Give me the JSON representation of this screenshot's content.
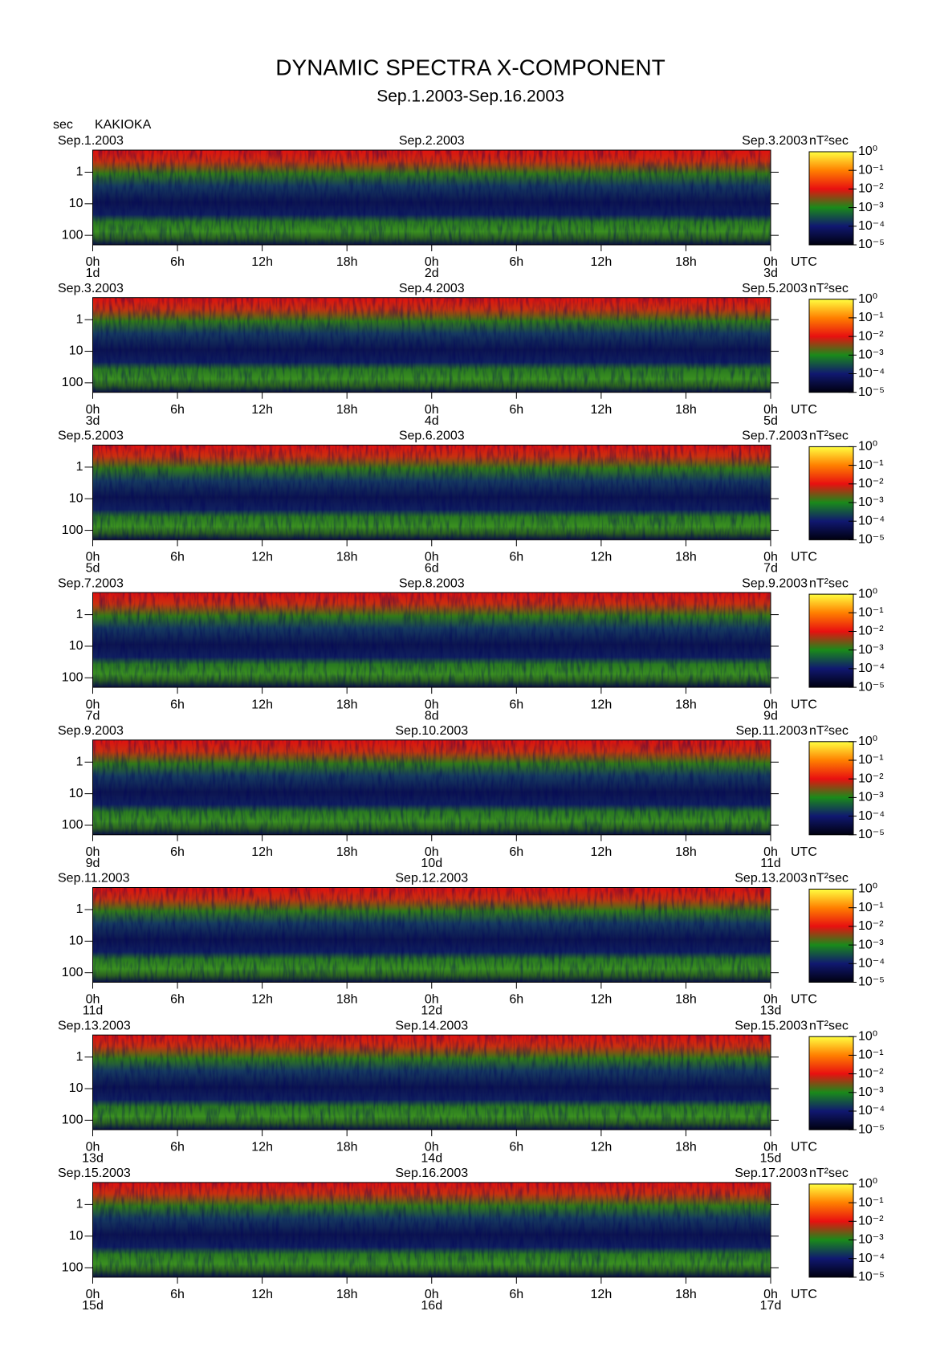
{
  "title": "DYNAMIC SPECTRA X-COMPONENT",
  "subtitle": "Sep.1.2003-Sep.16.2003",
  "y_unit": "sec",
  "station": "KAKIOKA",
  "x_unit": "UTC",
  "colorbar_unit": "nT²sec",
  "axes": {
    "xlim": [
      0,
      48
    ],
    "xticks": [
      {
        "value": 0,
        "label": "0h"
      },
      {
        "value": 6,
        "label": "6h"
      },
      {
        "value": 12,
        "label": "12h"
      },
      {
        "value": 18,
        "label": "18h"
      },
      {
        "value": 24,
        "label": "0h"
      },
      {
        "value": 30,
        "label": "6h"
      },
      {
        "value": 36,
        "label": "12h"
      },
      {
        "value": 42,
        "label": "18h"
      },
      {
        "value": 48,
        "label": "0h"
      }
    ],
    "ylim": [
      0.2,
      200
    ],
    "yscale": "log",
    "yticks": [
      1,
      10,
      100
    ],
    "clim": [
      -5,
      0
    ],
    "cticks": [
      {
        "value": 0,
        "label": "10⁰"
      },
      {
        "value": -1,
        "label": "10⁻¹"
      },
      {
        "value": -2,
        "label": "10⁻²"
      },
      {
        "value": -3,
        "label": "10⁻³"
      },
      {
        "value": -4,
        "label": "10⁻⁴"
      },
      {
        "value": -5,
        "label": "10⁻⁵"
      }
    ],
    "colormap": [
      "#000010",
      "#101870",
      "#1a8a1a",
      "#e81010",
      "#ff8000",
      "#ffff40"
    ]
  },
  "chart_data": [
    {
      "type": "heatmap",
      "date_labels": [
        "Sep.1.2003",
        "Sep.2.2003",
        "Sep.3.2003"
      ],
      "day_labels": [
        "1d",
        "2d",
        "3d"
      ]
    },
    {
      "type": "heatmap",
      "date_labels": [
        "Sep.3.2003",
        "Sep.4.2003",
        "Sep.5.2003"
      ],
      "day_labels": [
        "3d",
        "4d",
        "5d"
      ]
    },
    {
      "type": "heatmap",
      "date_labels": [
        "Sep.5.2003",
        "Sep.6.2003",
        "Sep.7.2003"
      ],
      "day_labels": [
        "5d",
        "6d",
        "7d"
      ]
    },
    {
      "type": "heatmap",
      "date_labels": [
        "Sep.7.2003",
        "Sep.8.2003",
        "Sep.9.2003"
      ],
      "day_labels": [
        "7d",
        "8d",
        "9d"
      ]
    },
    {
      "type": "heatmap",
      "date_labels": [
        "Sep.9.2003",
        "Sep.10.2003",
        "Sep.11.2003"
      ],
      "day_labels": [
        "9d",
        "10d",
        "11d"
      ]
    },
    {
      "type": "heatmap",
      "date_labels": [
        "Sep.11.2003",
        "Sep.12.2003",
        "Sep.13.2003"
      ],
      "day_labels": [
        "11d",
        "12d",
        "13d"
      ]
    },
    {
      "type": "heatmap",
      "date_labels": [
        "Sep.13.2003",
        "Sep.14.2003",
        "Sep.15.2003"
      ],
      "day_labels": [
        "13d",
        "14d",
        "15d"
      ]
    },
    {
      "type": "heatmap",
      "date_labels": [
        "Sep.15.2003",
        "Sep.16.2003",
        "Sep.17.2003"
      ],
      "day_labels": [
        "15d",
        "16d",
        "17d"
      ]
    }
  ]
}
